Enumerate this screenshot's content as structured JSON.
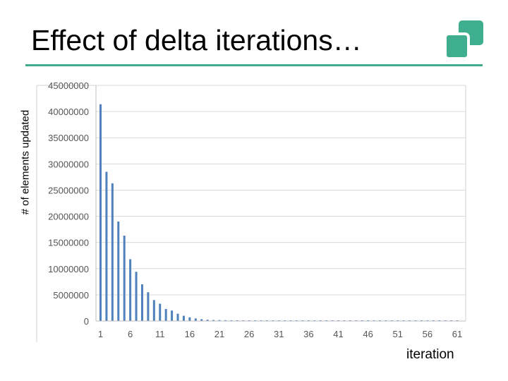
{
  "slide": {
    "title": "Effect of delta iterations…",
    "accent_color": "#3fae8e",
    "logo_icon": "two-rounded-squares-logo"
  },
  "chart_data": {
    "type": "bar",
    "title": "",
    "xlabel": "iteration",
    "ylabel": "# of elements updated",
    "ylim": [
      0,
      45000000
    ],
    "yticks": [
      0,
      5000000,
      10000000,
      15000000,
      20000000,
      25000000,
      30000000,
      35000000,
      40000000,
      45000000
    ],
    "ytick_labels": [
      "0",
      "5000000",
      "10000000",
      "15000000",
      "20000000",
      "25000000",
      "30000000",
      "35000000",
      "40000000",
      "45000000"
    ],
    "xtick_labels": [
      "1",
      "6",
      "11",
      "16",
      "21",
      "26",
      "31",
      "36",
      "41",
      "46",
      "51",
      "56",
      "61"
    ],
    "grid": true,
    "bar_color": "#4f81bd",
    "categories": [
      1,
      2,
      3,
      4,
      5,
      6,
      7,
      8,
      9,
      10,
      11,
      12,
      13,
      14,
      15,
      16,
      17,
      18,
      19,
      20,
      21,
      22,
      23,
      24,
      25,
      26,
      27,
      28,
      29,
      30,
      31,
      32,
      33,
      34,
      35,
      36,
      37,
      38,
      39,
      40,
      41,
      42,
      43,
      44,
      45,
      46,
      47,
      48,
      49,
      50,
      51,
      52,
      53,
      54,
      55,
      56,
      57,
      58,
      59,
      60,
      61
    ],
    "values": [
      41400000,
      28500000,
      26300000,
      19000000,
      16300000,
      11800000,
      9400000,
      7000000,
      5500000,
      4000000,
      3300000,
      2300000,
      2000000,
      1400000,
      1000000,
      700000,
      500000,
      350000,
      250000,
      200000,
      180000,
      160000,
      150000,
      140000,
      130000,
      120000,
      115000,
      110000,
      105000,
      100000,
      100000,
      95000,
      95000,
      90000,
      90000,
      85000,
      85000,
      80000,
      80000,
      80000,
      75000,
      75000,
      75000,
      70000,
      70000,
      70000,
      70000,
      65000,
      65000,
      65000,
      65000,
      60000,
      60000,
      60000,
      60000,
      55000,
      55000,
      55000,
      55000,
      50000,
      50000
    ]
  }
}
